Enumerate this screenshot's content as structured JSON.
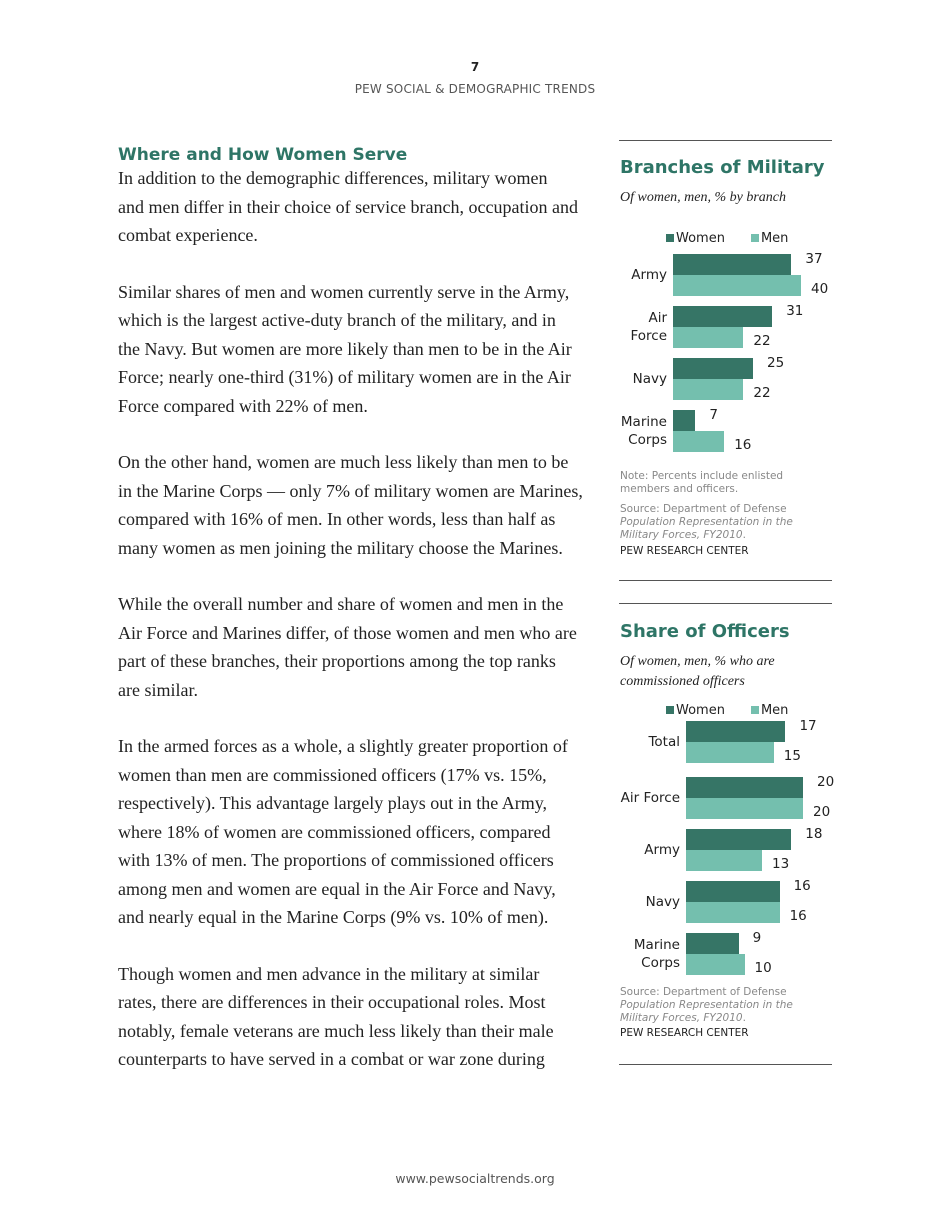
{
  "header": {
    "page_number": "7",
    "publication": "PEW SOCIAL & DEMOGRAPHIC TRENDS"
  },
  "section_title": "Where and How Women Serve",
  "paragraphs": [
    [
      "In addition to the demographic differences, military women",
      "and men differ in their choice of service branch, occupation and",
      "combat experience."
    ],
    [
      "Similar shares of men and women currently serve in the Army,",
      "which is the largest active-duty branch of the military, and in",
      "the Navy. But women are more likely than men to be in the Air",
      "Force; nearly one-third (31%) of military women are in the Air",
      "Force compared with 22% of men."
    ],
    [
      "On the other hand, women are much less likely than men to be",
      "in the Marine Corps — only 7% of military women are Marines,",
      "compared with 16% of men. In other words, less than half as",
      "many women as men joining the military choose the Marines."
    ],
    [
      "While the overall number and share of women and men in the",
      "Air Force and Marines differ, of those women and men who are",
      "part of these branches, their proportions among the top ranks",
      "are similar."
    ],
    [
      "In the armed forces as a whole, a slightly greater proportion of",
      "women than men are commissioned officers (17% vs. 15%,",
      "respectively). This advantage largely plays out in the Army,",
      "where 18% of women are commissioned officers, compared",
      "with 13% of men. The proportions of commissioned officers",
      "among men and women are equal in the Air Force and Navy,",
      "and nearly equal in the Marine Corps (9% vs. 10% of men)."
    ],
    [
      "Though women and men advance in the military at similar",
      "rates, there are differences in their occupational roles. Most",
      "notably, female veterans are much less likely than their male",
      "counterparts to have served in a combat or war zone during"
    ]
  ],
  "colors": {
    "accent": "#2e7566",
    "women": "#367566",
    "men": "#74bfae"
  },
  "chart_data": [
    {
      "type": "bar",
      "orientation": "horizontal",
      "title": "Branches of Military",
      "subtitle": "Of women, men, % by branch",
      "categories": [
        "Army",
        "Air Force",
        "Navy",
        "Marine Corps"
      ],
      "category_lines": [
        [
          "Army"
        ],
        [
          "Air",
          "Force"
        ],
        [
          "Navy"
        ],
        [
          "Marine",
          "Corps"
        ]
      ],
      "series": [
        {
          "name": "Women",
          "values": [
            37,
            31,
            25,
            7
          ]
        },
        {
          "name": "Men",
          "values": [
            40,
            22,
            22,
            16
          ]
        }
      ],
      "legend": "top",
      "note": "Note: Percents include enlisted members and officers.",
      "source_prefix": "Source: Department of Defense",
      "source_title": "Population Representation in the Military Forces, FY2010",
      "credit": "PEW RESEARCH CENTER"
    },
    {
      "type": "bar",
      "orientation": "horizontal",
      "title": "Share of Officers",
      "subtitle": "Of women, men, % who are commissioned officers",
      "categories": [
        "Total",
        "Air Force",
        "Army",
        "Navy",
        "Marine Corps"
      ],
      "category_lines": [
        [
          "Total"
        ],
        [
          "Air Force"
        ],
        [
          "Army"
        ],
        [
          "Navy"
        ],
        [
          "Marine",
          "Corps"
        ]
      ],
      "series": [
        {
          "name": "Women",
          "values": [
            17,
            20,
            18,
            16,
            9
          ]
        },
        {
          "name": "Men",
          "values": [
            15,
            20,
            13,
            16,
            10
          ]
        }
      ],
      "legend": "top",
      "source_prefix": "Source: Department of Defense",
      "source_title": "Population Representation in the Military Forces, FY2010",
      "credit": "PEW RESEARCH CENTER"
    }
  ],
  "footer": "www.pewsocialtrends.org"
}
